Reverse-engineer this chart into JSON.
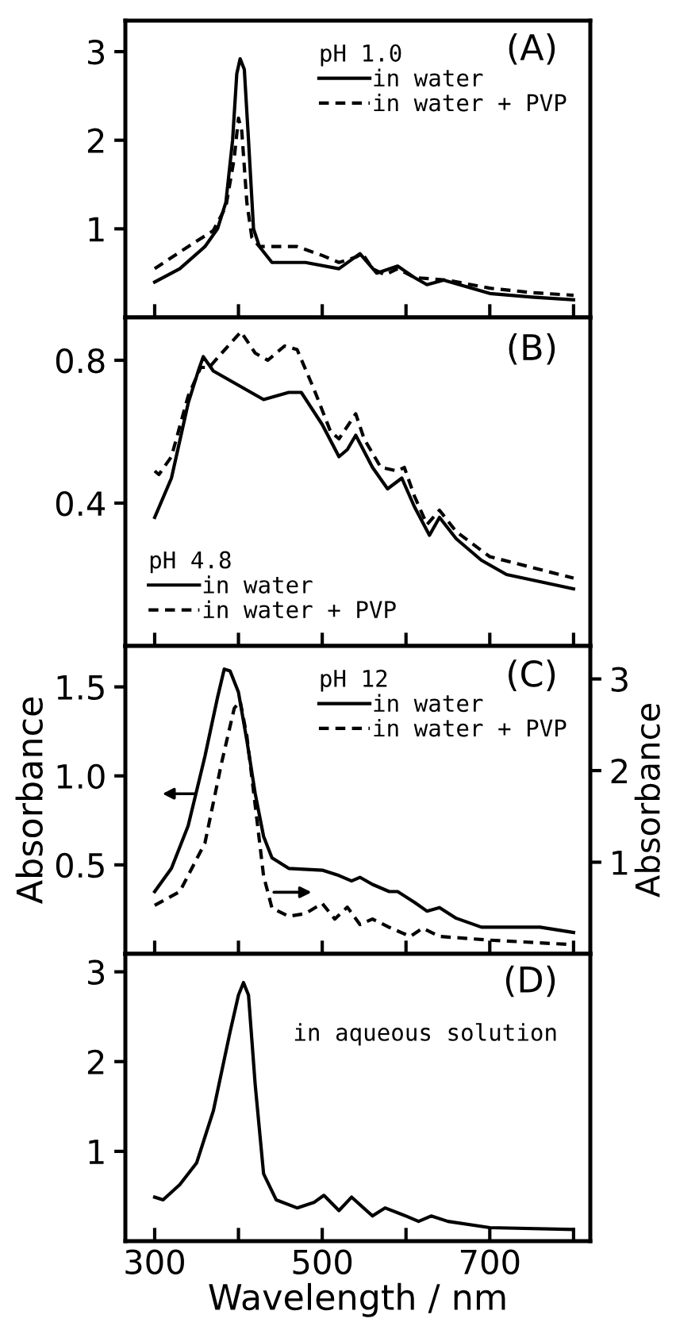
{
  "chart_data": [
    {
      "type": "line",
      "annotations": [
        "(A)"
      ],
      "legend_title": "pH 1.0",
      "legend": "top right",
      "tick_labels": "y",
      "xlim": [
        265,
        820
      ],
      "xticks": [
        300,
        {
          "value": 400,
          "label": null
        },
        500,
        {
          "value": 600,
          "label": null
        },
        700,
        {
          "value": 800,
          "label": null
        }
      ],
      "ylim": [
        0,
        3.35
      ],
      "yticks": [
        1,
        2,
        3
      ],
      "grid": false,
      "series": [
        {
          "name": "in water",
          "color": "#000000",
          "line_style": "solid",
          "x": [
            300,
            330,
            360,
            375,
            385,
            393,
            398,
            402,
            407,
            412,
            418,
            425,
            440,
            460,
            480,
            520,
            545,
            565,
            590,
            610,
            625,
            645,
            700,
            750,
            800
          ],
          "values": [
            0.4,
            0.55,
            0.8,
            1.0,
            1.3,
            2.0,
            2.75,
            2.92,
            2.8,
            2.0,
            1.0,
            0.8,
            0.62,
            0.62,
            0.62,
            0.55,
            0.72,
            0.5,
            0.58,
            0.45,
            0.37,
            0.42,
            0.27,
            0.23,
            0.2
          ]
        },
        {
          "name": "in water + PVP",
          "color": "#000000",
          "line_style": "dashed",
          "x": [
            300,
            340,
            370,
            385,
            395,
            400,
            404,
            410,
            416,
            425,
            470,
            500,
            520,
            540,
            548,
            560,
            575,
            590,
            610,
            650,
            700,
            750,
            800
          ],
          "values": [
            0.55,
            0.8,
            0.98,
            1.25,
            1.8,
            2.25,
            2.1,
            1.3,
            0.9,
            0.8,
            0.8,
            0.7,
            0.62,
            0.68,
            0.72,
            0.55,
            0.48,
            0.55,
            0.45,
            0.42,
            0.33,
            0.28,
            0.25
          ]
        }
      ]
    },
    {
      "type": "line",
      "annotations": [
        "(B)"
      ],
      "legend_title": "pH 4.8",
      "legend": "bottom left",
      "tick_labels": "y",
      "xlim": [
        265,
        820
      ],
      "xticks": [
        300,
        {
          "value": 400,
          "label": null
        },
        500,
        {
          "value": 600,
          "label": null
        },
        700,
        {
          "value": 800,
          "label": null
        }
      ],
      "ylim": [
        0,
        0.92
      ],
      "yticks": [
        0.4,
        0.8
      ],
      "grid": false,
      "series": [
        {
          "name": "in water",
          "color": "#000000",
          "line_style": "solid",
          "x": [
            300,
            320,
            340,
            352,
            358,
            370,
            400,
            430,
            460,
            475,
            500,
            520,
            530,
            540,
            560,
            578,
            595,
            610,
            628,
            640,
            660,
            690,
            720,
            760,
            800
          ],
          "values": [
            0.36,
            0.47,
            0.68,
            0.77,
            0.81,
            0.77,
            0.73,
            0.69,
            0.71,
            0.71,
            0.62,
            0.53,
            0.55,
            0.59,
            0.5,
            0.44,
            0.47,
            0.39,
            0.31,
            0.36,
            0.3,
            0.24,
            0.2,
            0.18,
            0.16
          ]
        },
        {
          "name": "in water + PVP",
          "color": "#000000",
          "line_style": "dashed",
          "x": [
            300,
            305,
            320,
            340,
            355,
            365,
            380,
            403,
            420,
            435,
            455,
            470,
            490,
            510,
            520,
            540,
            550,
            570,
            590,
            598,
            610,
            625,
            640,
            660,
            700,
            750,
            800
          ],
          "values": [
            0.49,
            0.48,
            0.53,
            0.7,
            0.78,
            0.78,
            0.82,
            0.88,
            0.82,
            0.8,
            0.84,
            0.83,
            0.72,
            0.6,
            0.58,
            0.65,
            0.58,
            0.5,
            0.49,
            0.5,
            0.42,
            0.34,
            0.38,
            0.32,
            0.25,
            0.22,
            0.19
          ]
        }
      ]
    },
    {
      "type": "line",
      "annotations": [
        "(C)"
      ],
      "legend_title": "pH 12",
      "legend": "top right",
      "tick_labels": "y",
      "ylabel": "Absorbance",
      "y2label": "Absorbance",
      "xlim": [
        265,
        820
      ],
      "xticks": [
        300,
        {
          "value": 400,
          "label": null
        },
        500,
        {
          "value": 600,
          "label": null
        },
        700,
        {
          "value": 800,
          "label": null
        }
      ],
      "ylim": [
        0,
        1.73
      ],
      "yticks": [
        0.5,
        {
          "value": 1.0,
          "label": "1.0"
        },
        1.5
      ],
      "y2lim": [
        0,
        3.36
      ],
      "y2ticks": [
        1,
        2,
        3
      ],
      "grid": false,
      "series": [
        {
          "name": "in water",
          "color": "#000000",
          "line_style": "solid",
          "x": [
            300,
            320,
            340,
            360,
            375,
            383,
            390,
            400,
            410,
            420,
            430,
            440,
            460,
            500,
            520,
            535,
            545,
            560,
            580,
            590,
            610,
            625,
            640,
            660,
            690,
            740,
            760,
            800
          ],
          "values": [
            0.35,
            0.48,
            0.72,
            1.11,
            1.44,
            1.6,
            1.59,
            1.47,
            1.2,
            0.9,
            0.66,
            0.54,
            0.48,
            0.47,
            0.44,
            0.41,
            0.43,
            0.39,
            0.35,
            0.35,
            0.29,
            0.24,
            0.26,
            0.2,
            0.15,
            0.15,
            0.15,
            0.12
          ]
        },
        {
          "name": "in water + PVP",
          "color": "#000000",
          "line_style": "dashed",
          "axis": "y2",
          "x": [
            300,
            330,
            360,
            380,
            395,
            402,
            410,
            420,
            430,
            440,
            460,
            480,
            500,
            515,
            530,
            545,
            560,
            580,
            605,
            620,
            640,
            700,
            800
          ],
          "values": [
            0.53,
            0.68,
            1.21,
            2.09,
            2.68,
            2.76,
            2.38,
            1.62,
            0.85,
            0.5,
            0.41,
            0.44,
            0.55,
            0.38,
            0.51,
            0.32,
            0.38,
            0.29,
            0.19,
            0.28,
            0.19,
            0.15,
            0.1
          ]
        }
      ]
    },
    {
      "type": "line",
      "annotations": [
        "(D)",
        "in aqueous solution"
      ],
      "xlabel": "Wavelength / nm",
      "xlim": [
        265,
        820
      ],
      "xticks": [
        300,
        {
          "value": 400,
          "label": null
        },
        500,
        {
          "value": 600,
          "label": null
        },
        700,
        {
          "value": 800,
          "label": null
        }
      ],
      "ylim": [
        0,
        3.2
      ],
      "yticks": [
        1,
        2,
        3
      ],
      "grid": false,
      "series": [
        {
          "color": "#000000",
          "line_style": "solid",
          "x": [
            300,
            310,
            330,
            350,
            370,
            390,
            400,
            406,
            412,
            420,
            430,
            445,
            470,
            490,
            502,
            520,
            535,
            560,
            575,
            600,
            615,
            630,
            650,
            700,
            800
          ],
          "values": [
            0.49,
            0.46,
            0.63,
            0.87,
            1.45,
            2.33,
            2.74,
            2.88,
            2.74,
            1.74,
            0.75,
            0.46,
            0.37,
            0.43,
            0.51,
            0.34,
            0.49,
            0.28,
            0.37,
            0.28,
            0.22,
            0.28,
            0.22,
            0.15,
            0.13
          ]
        }
      ]
    }
  ]
}
